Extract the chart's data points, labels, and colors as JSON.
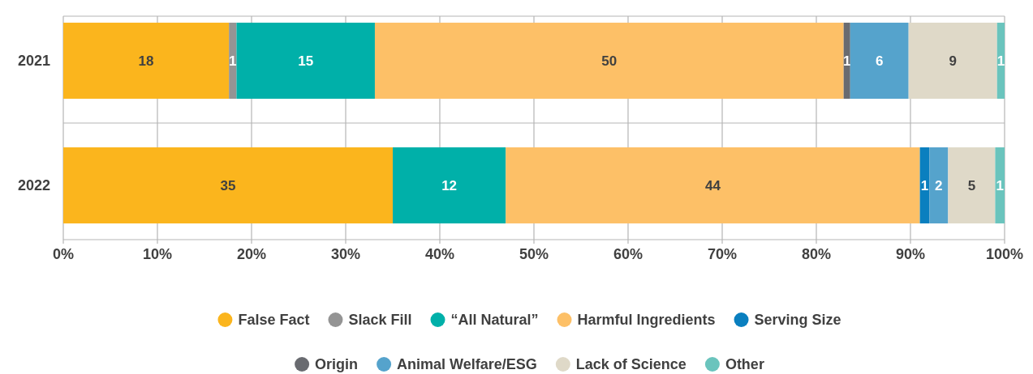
{
  "chart_data": {
    "type": "bar",
    "orientation": "horizontal",
    "stacked": true,
    "categories": [
      "2021",
      "2022"
    ],
    "xlim": [
      0,
      100
    ],
    "xticks": [
      {
        "value": 0,
        "label": "0%"
      },
      {
        "value": 10,
        "label": "10%"
      },
      {
        "value": 20,
        "label": "20%"
      },
      {
        "value": 30,
        "label": "30%"
      },
      {
        "value": 40,
        "label": "40%"
      },
      {
        "value": 50,
        "label": "50%"
      },
      {
        "value": 60,
        "label": "60%"
      },
      {
        "value": 70,
        "label": "70%"
      },
      {
        "value": 80,
        "label": "80%"
      },
      {
        "value": 90,
        "label": "90%"
      },
      {
        "value": 100,
        "label": "100%"
      }
    ],
    "grid": true,
    "legend": "bottom",
    "marker": "circle",
    "series": [
      {
        "name": "False Fact",
        "color": "#fbb51d",
        "values": [
          17.6,
          35
        ],
        "value_labels": [
          "18",
          "35"
        ]
      },
      {
        "name": "Slack Fill",
        "color": "#949494",
        "values": [
          0.8,
          null
        ],
        "value_labels": [
          "1",
          null
        ]
      },
      {
        "name": "“All Natural”",
        "color": "#00b0a9",
        "values": [
          14.7,
          12
        ],
        "value_labels": [
          "15",
          "12"
        ]
      },
      {
        "name": "Harmful Ingredients",
        "color": "#fdc067",
        "values": [
          49.8,
          44
        ],
        "value_labels": [
          "50",
          "44"
        ]
      },
      {
        "name": "Serving Size",
        "color": "#0a7fbf",
        "values": [
          null,
          1
        ],
        "value_labels": [
          null,
          "1"
        ]
      },
      {
        "name": "Origin",
        "color": "#696b70",
        "values": [
          0.7,
          null
        ],
        "value_labels": [
          "1",
          null
        ]
      },
      {
        "name": "Animal Welfare/ESG",
        "color": "#55a3cc",
        "values": [
          6.2,
          2
        ],
        "value_labels": [
          "6",
          "2"
        ]
      },
      {
        "name": "Lack of Science",
        "color": "#dfd9c8",
        "values": [
          9.4,
          5
        ],
        "value_labels": [
          "9",
          "5"
        ]
      },
      {
        "name": "Other",
        "color": "#6ac4bd",
        "values": [
          0.8,
          1
        ],
        "value_labels": [
          "1",
          "1"
        ]
      }
    ]
  }
}
